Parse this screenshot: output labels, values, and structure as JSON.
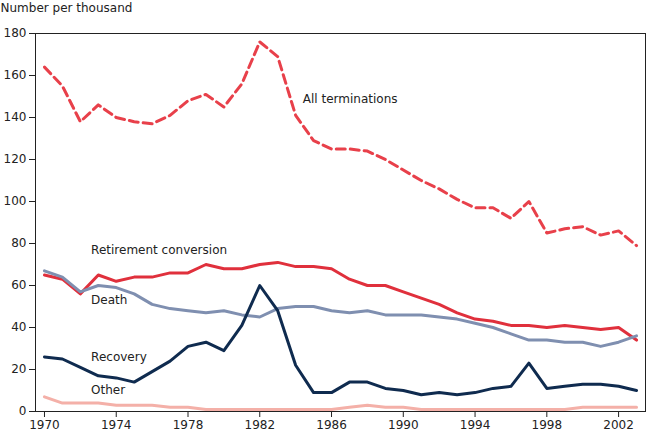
{
  "chart_data": {
    "type": "line",
    "y_label": "Number per thousand",
    "x": [
      1970,
      1971,
      1972,
      1973,
      1974,
      1975,
      1976,
      1977,
      1978,
      1979,
      1980,
      1981,
      1982,
      1983,
      1984,
      1985,
      1986,
      1987,
      1988,
      1989,
      1990,
      1991,
      1992,
      1993,
      1994,
      1995,
      1996,
      1997,
      1998,
      1999,
      2000,
      2001,
      2002,
      2003
    ],
    "xlim": [
      1969.5,
      2003.5
    ],
    "xticks": [
      1970,
      1974,
      1978,
      1982,
      1986,
      1990,
      1994,
      1998,
      2002
    ],
    "ylim": [
      0,
      180
    ],
    "yticks": [
      0,
      20,
      40,
      60,
      80,
      100,
      120,
      140,
      160,
      180
    ],
    "grid": false,
    "series": [
      {
        "name": "All terminations",
        "color": "#e8404a",
        "line_style": "dashed",
        "values": [
          164,
          155,
          138,
          146,
          140,
          138,
          137,
          141,
          148,
          151,
          145,
          156,
          176,
          169,
          141,
          129,
          125,
          125,
          124,
          120,
          115,
          110,
          106,
          101,
          97,
          97,
          92,
          100,
          85,
          87,
          88,
          84,
          86,
          79
        ]
      },
      {
        "name": "Retirement conversion",
        "color": "#e0303c",
        "line_style": "solid",
        "values": [
          65,
          63,
          56,
          65,
          62,
          64,
          64,
          66,
          66,
          70,
          68,
          68,
          70,
          71,
          69,
          69,
          68,
          63,
          60,
          60,
          57,
          54,
          51,
          47,
          44,
          43,
          41,
          41,
          40,
          41,
          40,
          39,
          40,
          34
        ]
      },
      {
        "name": "Death",
        "color": "#7f8fb0",
        "line_style": "solid",
        "values": [
          67,
          64,
          57,
          60,
          59,
          56,
          51,
          49,
          48,
          47,
          48,
          46,
          45,
          49,
          50,
          50,
          48,
          47,
          48,
          46,
          46,
          46,
          45,
          44,
          42,
          40,
          37,
          34,
          34,
          33,
          33,
          31,
          33,
          36
        ]
      },
      {
        "name": "Recovery",
        "color": "#0f2b4f",
        "line_style": "solid",
        "values": [
          26,
          25,
          21,
          17,
          16,
          14,
          19,
          24,
          31,
          33,
          29,
          41,
          60,
          48,
          22,
          9,
          9,
          14,
          14,
          11,
          10,
          8,
          9,
          8,
          9,
          11,
          12,
          23,
          11,
          12,
          13,
          13,
          12,
          10
        ]
      },
      {
        "name": "Other",
        "color": "#f4b0a8",
        "line_style": "solid",
        "values": [
          7,
          4,
          4,
          4,
          3,
          3,
          3,
          2,
          2,
          1,
          1,
          1,
          1,
          1,
          1,
          1,
          1,
          2,
          3,
          2,
          2,
          1,
          1,
          1,
          1,
          1,
          1,
          1,
          1,
          1,
          2,
          2,
          2,
          2
        ]
      }
    ]
  }
}
